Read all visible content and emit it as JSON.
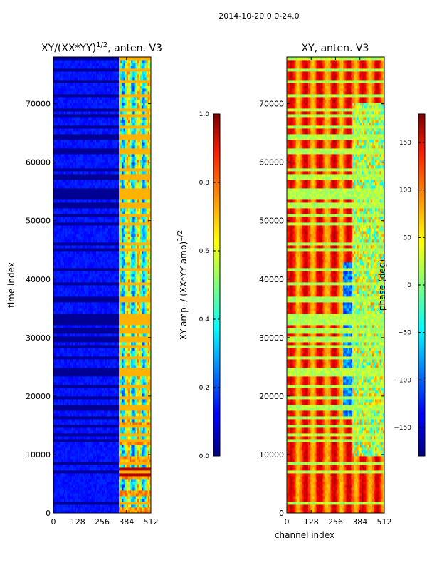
{
  "figure_title": "2014-10-20 0.0-24.0",
  "chart_data": [
    {
      "type": "heatmap",
      "title": "XY/(XX*YY)",
      "title_exponent": "1/2",
      "title_suffix": ", anten. V3",
      "xlabel": "",
      "ylabel": "time index",
      "xlim": [
        0,
        512
      ],
      "ylim": [
        0,
        78000
      ],
      "xticks": [
        0,
        128,
        256,
        384,
        512
      ],
      "yticks": [
        0,
        10000,
        20000,
        30000,
        40000,
        50000,
        60000,
        70000
      ],
      "colorbar": {
        "label": "XY amp. / (XX*YY amp)",
        "label_exponent": "1/2",
        "range": [
          0.0,
          1.0
        ],
        "ticks": [
          "0.0",
          "0.2",
          "0.4",
          "0.6",
          "0.8",
          "1.0"
        ],
        "colormap": "jet"
      }
    },
    {
      "type": "heatmap",
      "title": "XY, anten. V3",
      "xlabel": "channel index",
      "ylabel": "",
      "xlim": [
        0,
        512
      ],
      "ylim": [
        0,
        78000
      ],
      "xticks": [
        0,
        128,
        256,
        384,
        512
      ],
      "yticks": [
        0,
        10000,
        20000,
        30000,
        40000,
        50000,
        60000,
        70000
      ],
      "colorbar": {
        "label": "phase (deg)",
        "range": [
          -180,
          180
        ],
        "ticks": [
          "−150",
          "−100",
          "−50",
          "0",
          "50",
          "100",
          "150"
        ],
        "colormap": "jet"
      }
    }
  ]
}
